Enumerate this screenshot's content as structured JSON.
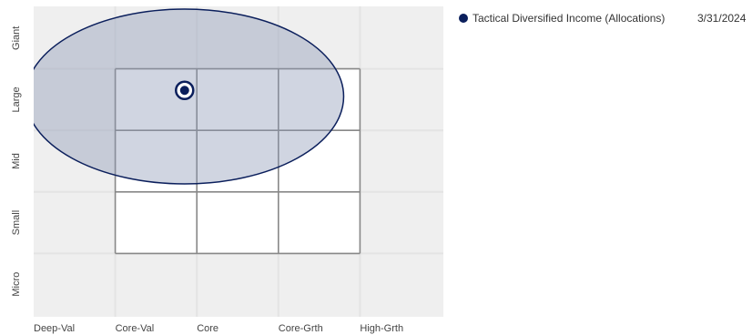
{
  "chart_data": {
    "type": "scatter",
    "x_categories": [
      "Deep-Val",
      "Core-Val",
      "Core",
      "Core-Grth",
      "High-Grth"
    ],
    "y_categories": [
      "Micro",
      "Small",
      "Mid",
      "Large",
      "Giant"
    ],
    "points": [
      {
        "name": "Tactical Diversified Income (Allocations)",
        "x": 1.85,
        "y": 3.65
      }
    ],
    "ownership_zone": {
      "cx": 1.85,
      "cy": 3.55,
      "rx": 1.95,
      "ry": 1.42
    },
    "style_box": {
      "x_from": 1,
      "x_to": 4,
      "y_from": 1,
      "y_to": 4
    },
    "legend": {
      "label": "Tactical Diversified Income (Allocations)",
      "date": "3/31/2024"
    },
    "colors": {
      "point": "#0b1f5c",
      "zone_fill": "#8a95b3",
      "zone_stroke": "#0b1f5c",
      "grid_light": "#e4e4e4",
      "background": "#efefef",
      "box_line": "#888888"
    }
  }
}
